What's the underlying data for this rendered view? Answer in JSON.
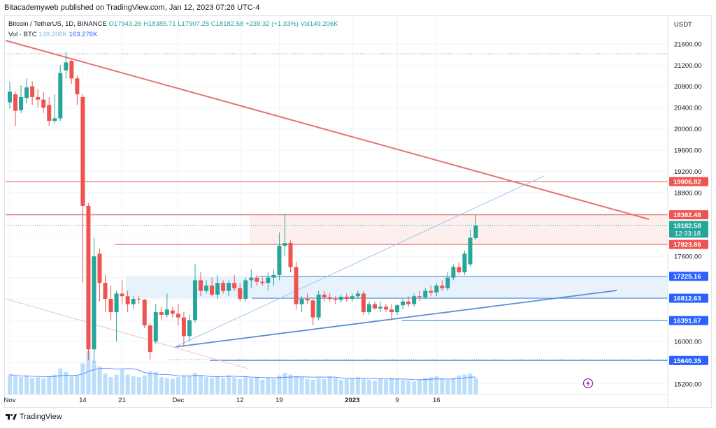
{
  "publisher_line": "Bitacademyweb published on TradingView.com, Jan 12, 2023 07:26 UTC-4",
  "legend": {
    "symbol": "Bitcoin / TetherUS, 1D, BINANCE",
    "open": "O17943.26",
    "high": "H18385.71",
    "low": "L17907.25",
    "close": "C18182.58",
    "change": "+239.32 (+1.33%)",
    "volume": "Vol149.206K",
    "vol_label": "Vol · BTC",
    "vol_a": "149.206K",
    "vol_b": "163.276K"
  },
  "footer": {
    "brand": "TradingView"
  },
  "colors": {
    "up": "#26a69a",
    "down": "#ef5350",
    "volume": "#bbdefb",
    "blue_line": "#5b8fd6",
    "red_line": "#e57373",
    "grid": "#f0f3fa"
  },
  "chart_data": {
    "type": "candlestick",
    "title": "Bitcoin / TetherUS, 1D, BINANCE",
    "y_axis_unit": "USDT",
    "ylim": [
      15000,
      21900
    ],
    "y_ticks": [
      15200,
      15600,
      16000,
      16400,
      16800,
      17200,
      17600,
      18000,
      18400,
      18800,
      19200,
      19600,
      20000,
      20400,
      20800,
      21200,
      21600
    ],
    "x_ticks": [
      {
        "label": "Nov",
        "index": 0
      },
      {
        "label": "14",
        "index": 13
      },
      {
        "label": "21",
        "index": 20
      },
      {
        "label": "Dec",
        "index": 30
      },
      {
        "label": "12",
        "index": 41
      },
      {
        "label": "19",
        "index": 48
      },
      {
        "label": "2023",
        "index": 61
      },
      {
        "label": "9",
        "index": 69
      },
      {
        "label": "16",
        "index": 76
      }
    ],
    "price_labels": [
      {
        "text": "19006.82",
        "value": 19006.82,
        "style": "red"
      },
      {
        "text": "18382.48",
        "value": 18382.48,
        "style": "red"
      },
      {
        "text": "18182.58",
        "value": 18182.58,
        "style": "teal",
        "sub": "12:33:18"
      },
      {
        "text": "17823.86",
        "value": 17823.86,
        "style": "red"
      },
      {
        "text": "17225.16",
        "value": 17225.16,
        "style": "blue"
      },
      {
        "text": "16812.63",
        "value": 16812.63,
        "style": "blue"
      },
      {
        "text": "16391.67",
        "value": 16391.67,
        "style": "blue"
      },
      {
        "text": "15640.35",
        "value": 15640.35,
        "style": "blue"
      }
    ],
    "candles": [
      {
        "o": 20500,
        "h": 20890,
        "l": 20380,
        "c": 20700
      },
      {
        "o": 20650,
        "h": 20700,
        "l": 20050,
        "c": 20340
      },
      {
        "o": 20350,
        "h": 20820,
        "l": 20300,
        "c": 20600
      },
      {
        "o": 20580,
        "h": 20950,
        "l": 20480,
        "c": 20780
      },
      {
        "o": 20800,
        "h": 20900,
        "l": 20450,
        "c": 20600
      },
      {
        "o": 20600,
        "h": 20750,
        "l": 20400,
        "c": 20550
      },
      {
        "o": 20550,
        "h": 20700,
        "l": 20300,
        "c": 20400
      },
      {
        "o": 20450,
        "h": 20600,
        "l": 20050,
        "c": 20150
      },
      {
        "o": 20150,
        "h": 20650,
        "l": 20100,
        "c": 20200
      },
      {
        "o": 20200,
        "h": 21200,
        "l": 20150,
        "c": 21050
      },
      {
        "o": 21100,
        "h": 21450,
        "l": 20950,
        "c": 21250
      },
      {
        "o": 21280,
        "h": 21300,
        "l": 20850,
        "c": 20950
      },
      {
        "o": 20950,
        "h": 21000,
        "l": 20450,
        "c": 20650
      },
      {
        "o": 20600,
        "h": 20650,
        "l": 17100,
        "c": 18550
      },
      {
        "o": 18550,
        "h": 18600,
        "l": 15650,
        "c": 15850
      },
      {
        "o": 15850,
        "h": 17950,
        "l": 15600,
        "c": 17600
      },
      {
        "o": 17650,
        "h": 17750,
        "l": 16750,
        "c": 17100
      },
      {
        "o": 17100,
        "h": 17250,
        "l": 16550,
        "c": 16800
      },
      {
        "o": 16800,
        "h": 17050,
        "l": 16400,
        "c": 16550
      },
      {
        "o": 16550,
        "h": 16950,
        "l": 16000,
        "c": 16900
      },
      {
        "o": 16900,
        "h": 17150,
        "l": 16700,
        "c": 16850
      },
      {
        "o": 16850,
        "h": 16950,
        "l": 16550,
        "c": 16700
      },
      {
        "o": 16700,
        "h": 16850,
        "l": 16600,
        "c": 16800
      },
      {
        "o": 16800,
        "h": 16850,
        "l": 16700,
        "c": 16790
      },
      {
        "o": 16780,
        "h": 16800,
        "l": 16250,
        "c": 16300
      },
      {
        "o": 16300,
        "h": 16350,
        "l": 15650,
        "c": 15800
      },
      {
        "o": 16000,
        "h": 16700,
        "l": 15950,
        "c": 16550
      },
      {
        "o": 16550,
        "h": 16650,
        "l": 16400,
        "c": 16500
      },
      {
        "o": 16500,
        "h": 16900,
        "l": 16450,
        "c": 16600
      },
      {
        "o": 16580,
        "h": 16650,
        "l": 16450,
        "c": 16520
      },
      {
        "o": 16520,
        "h": 16700,
        "l": 16300,
        "c": 16450
      },
      {
        "o": 16450,
        "h": 16550,
        "l": 15900,
        "c": 16100
      },
      {
        "o": 16100,
        "h": 16500,
        "l": 16000,
        "c": 16400
      },
      {
        "o": 16400,
        "h": 17450,
        "l": 16350,
        "c": 17150
      },
      {
        "o": 17150,
        "h": 17300,
        "l": 16850,
        "c": 16950
      },
      {
        "o": 16950,
        "h": 17150,
        "l": 16900,
        "c": 17050
      },
      {
        "o": 17050,
        "h": 17200,
        "l": 16850,
        "c": 16880
      },
      {
        "o": 16880,
        "h": 17250,
        "l": 16800,
        "c": 17100
      },
      {
        "o": 17100,
        "h": 17150,
        "l": 16900,
        "c": 16950
      },
      {
        "o": 16950,
        "h": 17150,
        "l": 16850,
        "c": 17100
      },
      {
        "o": 17100,
        "h": 17250,
        "l": 16950,
        "c": 17000
      },
      {
        "o": 17000,
        "h": 17100,
        "l": 16750,
        "c": 16800
      },
      {
        "o": 16800,
        "h": 17200,
        "l": 16750,
        "c": 17150
      },
      {
        "o": 17150,
        "h": 17350,
        "l": 17000,
        "c": 17200
      },
      {
        "o": 17200,
        "h": 17250,
        "l": 17050,
        "c": 17120
      },
      {
        "o": 17120,
        "h": 17200,
        "l": 17050,
        "c": 17100
      },
      {
        "o": 17100,
        "h": 17300,
        "l": 16950,
        "c": 17200
      },
      {
        "o": 17200,
        "h": 17350,
        "l": 17050,
        "c": 17250
      },
      {
        "o": 17250,
        "h": 18050,
        "l": 17150,
        "c": 17800
      },
      {
        "o": 17800,
        "h": 18400,
        "l": 17600,
        "c": 17850
      },
      {
        "o": 17850,
        "h": 17900,
        "l": 17300,
        "c": 17400
      },
      {
        "o": 17400,
        "h": 17500,
        "l": 16600,
        "c": 16700
      },
      {
        "o": 16700,
        "h": 16850,
        "l": 16550,
        "c": 16800
      },
      {
        "o": 16800,
        "h": 16900,
        "l": 16700,
        "c": 16770
      },
      {
        "o": 16770,
        "h": 16800,
        "l": 16300,
        "c": 16450
      },
      {
        "o": 16450,
        "h": 16950,
        "l": 16400,
        "c": 16880
      },
      {
        "o": 16880,
        "h": 16950,
        "l": 16750,
        "c": 16830
      },
      {
        "o": 16830,
        "h": 16900,
        "l": 16750,
        "c": 16800
      },
      {
        "o": 16800,
        "h": 16850,
        "l": 16700,
        "c": 16780
      },
      {
        "o": 16780,
        "h": 16870,
        "l": 16730,
        "c": 16840
      },
      {
        "o": 16840,
        "h": 16900,
        "l": 16750,
        "c": 16800
      },
      {
        "o": 16800,
        "h": 16900,
        "l": 16750,
        "c": 16850
      },
      {
        "o": 16850,
        "h": 16950,
        "l": 16800,
        "c": 16900
      },
      {
        "o": 16900,
        "h": 16950,
        "l": 16500,
        "c": 16550
      },
      {
        "o": 16550,
        "h": 16750,
        "l": 16500,
        "c": 16700
      },
      {
        "o": 16700,
        "h": 16750,
        "l": 16600,
        "c": 16620
      },
      {
        "o": 16620,
        "h": 16750,
        "l": 16550,
        "c": 16650
      },
      {
        "o": 16650,
        "h": 16700,
        "l": 16550,
        "c": 16600
      },
      {
        "o": 16600,
        "h": 16700,
        "l": 16400,
        "c": 16550
      },
      {
        "o": 16550,
        "h": 16700,
        "l": 16500,
        "c": 16680
      },
      {
        "o": 16680,
        "h": 16800,
        "l": 16600,
        "c": 16750
      },
      {
        "o": 16750,
        "h": 16850,
        "l": 16650,
        "c": 16700
      },
      {
        "o": 16700,
        "h": 16900,
        "l": 16650,
        "c": 16850
      },
      {
        "o": 16850,
        "h": 16950,
        "l": 16750,
        "c": 16830
      },
      {
        "o": 16830,
        "h": 17000,
        "l": 16800,
        "c": 16950
      },
      {
        "o": 16950,
        "h": 17050,
        "l": 16850,
        "c": 16920
      },
      {
        "o": 16920,
        "h": 17100,
        "l": 16850,
        "c": 17050
      },
      {
        "o": 17050,
        "h": 17150,
        "l": 16950,
        "c": 17000
      },
      {
        "o": 17000,
        "h": 17300,
        "l": 16950,
        "c": 17200
      },
      {
        "o": 17200,
        "h": 17450,
        "l": 17150,
        "c": 17400
      },
      {
        "o": 17400,
        "h": 17500,
        "l": 17250,
        "c": 17300
      },
      {
        "o": 17300,
        "h": 17700,
        "l": 17250,
        "c": 17650
      },
      {
        "o": 17450,
        "h": 18100,
        "l": 17400,
        "c": 17950
      },
      {
        "o": 17943.26,
        "h": 18385.71,
        "l": 17907.25,
        "c": 18182.58
      }
    ],
    "volume": [
      46,
      42,
      40,
      44,
      38,
      40,
      37,
      42,
      46,
      60,
      52,
      42,
      44,
      72,
      100,
      78,
      64,
      48,
      40,
      46,
      58,
      46,
      42,
      40,
      44,
      54,
      52,
      40,
      38,
      36,
      40,
      44,
      42,
      50,
      44,
      40,
      38,
      42,
      38,
      44,
      40,
      36,
      42,
      38,
      40,
      34,
      38,
      36,
      44,
      50,
      46,
      42,
      40,
      36,
      34,
      38,
      36,
      40,
      38,
      34,
      36,
      38,
      40,
      36,
      34,
      32,
      36,
      34,
      38,
      36,
      34,
      32,
      30,
      34,
      38,
      40,
      42,
      36,
      34,
      38,
      44,
      46,
      48,
      38
    ]
  }
}
